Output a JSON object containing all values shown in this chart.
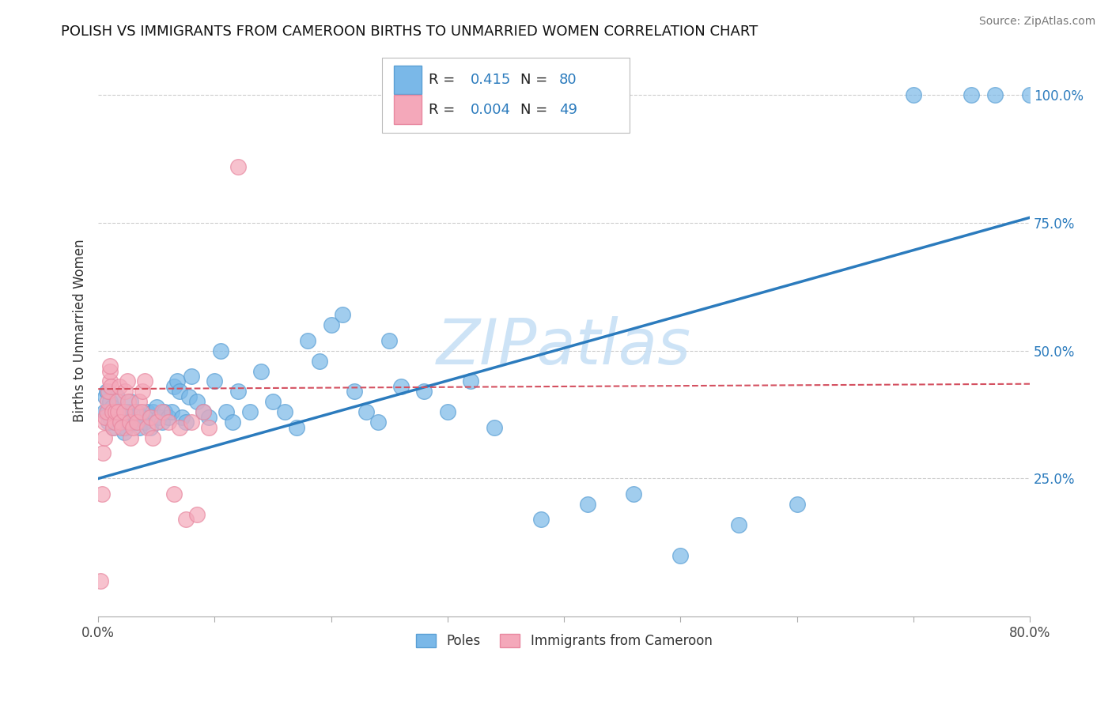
{
  "title": "POLISH VS IMMIGRANTS FROM CAMEROON BIRTHS TO UNMARRIED WOMEN CORRELATION CHART",
  "source": "Source: ZipAtlas.com",
  "ylabel": "Births to Unmarried Women",
  "xlim": [
    0.0,
    0.8
  ],
  "ylim": [
    -0.02,
    1.1
  ],
  "xticks": [
    0.0,
    0.1,
    0.2,
    0.3,
    0.4,
    0.5,
    0.6,
    0.7,
    0.8
  ],
  "xticklabels": [
    "0.0%",
    "",
    "",
    "",
    "",
    "",
    "",
    "",
    "80.0%"
  ],
  "yticks": [
    0.25,
    0.5,
    0.75,
    1.0
  ],
  "yticklabels": [
    "25.0%",
    "50.0%",
    "75.0%",
    "100.0%"
  ],
  "poles_color": "#7ab8e8",
  "poles_edge_color": "#5a9fd4",
  "cameroon_color": "#f4a8ba",
  "cameroon_edge_color": "#e888a0",
  "trendline_blue_color": "#2b7bbd",
  "trendline_pink_color": "#d45060",
  "watermark_text": "ZIPatlas",
  "watermark_color": "#c5dff5",
  "legend_label_poles": "Poles",
  "legend_label_cameroon": "Immigrants from Cameroon",
  "poles_R": "0.415",
  "poles_N": "80",
  "cameroon_R": "0.004",
  "cameroon_N": "49",
  "trendline_blue_x0": 0.0,
  "trendline_blue_y0": 0.25,
  "trendline_blue_x1": 0.8,
  "trendline_blue_y1": 0.76,
  "trendline_pink_x0": 0.0,
  "trendline_pink_y0": 0.425,
  "trendline_pink_x1": 0.8,
  "trendline_pink_y1": 0.435,
  "poles_x": [
    0.005,
    0.006,
    0.007,
    0.008,
    0.009,
    0.01,
    0.01,
    0.012,
    0.013,
    0.014,
    0.015,
    0.016,
    0.018,
    0.02,
    0.021,
    0.022,
    0.023,
    0.024,
    0.025,
    0.026,
    0.027,
    0.028,
    0.03,
    0.032,
    0.033,
    0.035,
    0.037,
    0.04,
    0.042,
    0.045,
    0.047,
    0.05,
    0.052,
    0.055,
    0.057,
    0.06,
    0.063,
    0.065,
    0.068,
    0.07,
    0.072,
    0.075,
    0.078,
    0.08,
    0.085,
    0.09,
    0.095,
    0.1,
    0.105,
    0.11,
    0.115,
    0.12,
    0.13,
    0.14,
    0.15,
    0.16,
    0.17,
    0.18,
    0.19,
    0.2,
    0.21,
    0.22,
    0.23,
    0.24,
    0.25,
    0.26,
    0.28,
    0.3,
    0.32,
    0.34,
    0.38,
    0.42,
    0.46,
    0.5,
    0.55,
    0.6,
    0.7,
    0.75,
    0.77,
    0.8
  ],
  "poles_y": [
    0.38,
    0.41,
    0.42,
    0.38,
    0.36,
    0.37,
    0.4,
    0.39,
    0.35,
    0.36,
    0.38,
    0.41,
    0.37,
    0.36,
    0.38,
    0.34,
    0.35,
    0.38,
    0.37,
    0.36,
    0.38,
    0.4,
    0.36,
    0.37,
    0.38,
    0.35,
    0.37,
    0.36,
    0.38,
    0.35,
    0.38,
    0.39,
    0.37,
    0.36,
    0.38,
    0.37,
    0.38,
    0.43,
    0.44,
    0.42,
    0.37,
    0.36,
    0.41,
    0.45,
    0.4,
    0.38,
    0.37,
    0.44,
    0.5,
    0.38,
    0.36,
    0.42,
    0.38,
    0.46,
    0.4,
    0.38,
    0.35,
    0.52,
    0.48,
    0.55,
    0.57,
    0.42,
    0.38,
    0.36,
    0.52,
    0.43,
    0.42,
    0.38,
    0.44,
    0.35,
    0.17,
    0.2,
    0.22,
    0.1,
    0.16,
    0.2,
    1.0,
    1.0,
    1.0,
    1.0
  ],
  "cameroon_x": [
    0.002,
    0.003,
    0.004,
    0.005,
    0.005,
    0.006,
    0.007,
    0.008,
    0.009,
    0.01,
    0.01,
    0.01,
    0.011,
    0.012,
    0.013,
    0.014,
    0.015,
    0.016,
    0.017,
    0.018,
    0.019,
    0.02,
    0.022,
    0.023,
    0.025,
    0.026,
    0.027,
    0.028,
    0.03,
    0.032,
    0.033,
    0.035,
    0.037,
    0.038,
    0.04,
    0.042,
    0.045,
    0.047,
    0.05,
    0.055,
    0.06,
    0.065,
    0.07,
    0.075,
    0.08,
    0.085,
    0.09,
    0.095,
    0.12
  ],
  "cameroon_y": [
    0.05,
    0.22,
    0.3,
    0.33,
    0.36,
    0.37,
    0.38,
    0.4,
    0.42,
    0.44,
    0.46,
    0.47,
    0.43,
    0.38,
    0.35,
    0.36,
    0.38,
    0.4,
    0.38,
    0.43,
    0.36,
    0.35,
    0.38,
    0.42,
    0.44,
    0.4,
    0.36,
    0.33,
    0.35,
    0.38,
    0.36,
    0.4,
    0.38,
    0.42,
    0.44,
    0.35,
    0.37,
    0.33,
    0.36,
    0.38,
    0.36,
    0.22,
    0.35,
    0.17,
    0.36,
    0.18,
    0.38,
    0.35,
    0.86
  ]
}
